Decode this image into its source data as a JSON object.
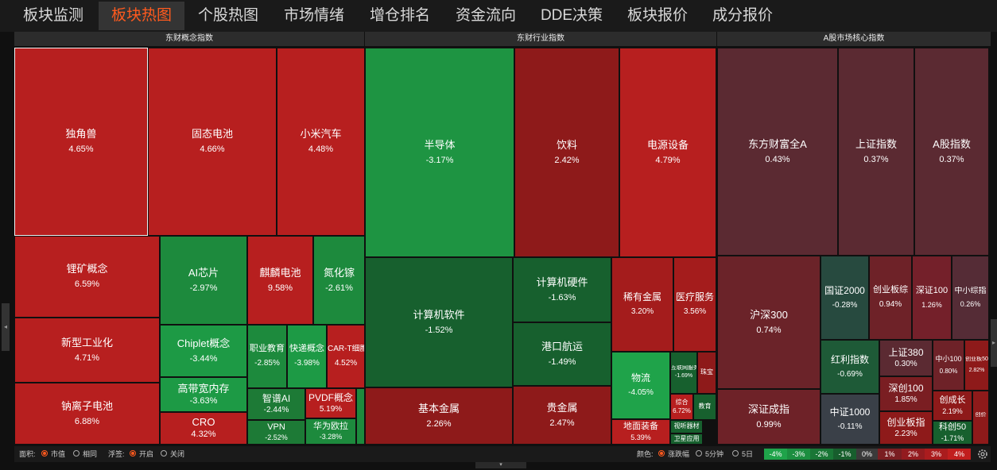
{
  "nav": {
    "tabs": [
      "板块监测",
      "板块热图",
      "个股热图",
      "市场情绪",
      "增仓排名",
      "资金流向",
      "DDE决策",
      "板块报价",
      "成分报价"
    ],
    "active_index": 1
  },
  "sections": [
    "东财概念指数",
    "东财行业指数",
    "A股市场核心指数"
  ],
  "tiles": [
    {
      "name": "独角兽",
      "pct": "4.65%",
      "bg": "#b71f1f"
    },
    {
      "name": "固态电池",
      "pct": "4.66%",
      "bg": "#b71f1f"
    },
    {
      "name": "小米汽车",
      "pct": "4.48%",
      "bg": "#b71f1f"
    },
    {
      "name": "锂矿概念",
      "pct": "6.59%",
      "bg": "#b71f1f"
    },
    {
      "name": "AI芯片",
      "pct": "-2.97%",
      "bg": "#1d8a3d"
    },
    {
      "name": "麒麟电池",
      "pct": "9.58%",
      "bg": "#b71f1f"
    },
    {
      "name": "氮化镓",
      "pct": "-2.61%",
      "bg": "#1d8a3d"
    },
    {
      "name": "新型工业化",
      "pct": "4.71%",
      "bg": "#b71f1f"
    },
    {
      "name": "Chiplet概念",
      "pct": "-3.44%",
      "bg": "#1d9a45"
    },
    {
      "name": "高带宽内存",
      "pct": "-3.63%",
      "bg": "#1d9a45"
    },
    {
      "name": "CRO",
      "pct": "4.32%",
      "bg": "#b71f1f"
    },
    {
      "name": "钠离子电池",
      "pct": "6.88%",
      "bg": "#b71f1f"
    },
    {
      "name": "职业教育",
      "pct": "-2.85%",
      "bg": "#1d8a3d"
    },
    {
      "name": "快递概念",
      "pct": "-3.98%",
      "bg": "#1d9a45"
    },
    {
      "name": "CAR-T细胞",
      "pct": "4.52%",
      "bg": "#b71f1f"
    },
    {
      "name": "智谱AI",
      "pct": "-2.44%",
      "bg": "#1d7a36"
    },
    {
      "name": "PVDF概念",
      "pct": "5.19%",
      "bg": "#b71f1f"
    },
    {
      "name": "VPN",
      "pct": "-2.52%",
      "bg": "#1d7a36"
    },
    {
      "name": "华为欧拉",
      "pct": "-3.28%",
      "bg": "#1d8a3d"
    },
    {
      "name": "",
      "pct": "",
      "bg": "#1d8a3d"
    },
    {
      "name": "半导体",
      "pct": "-3.17%",
      "bg": "#1e9442"
    },
    {
      "name": "饮料",
      "pct": "2.42%",
      "bg": "#8e1a1a"
    },
    {
      "name": "电源设备",
      "pct": "4.79%",
      "bg": "#b71f1f"
    },
    {
      "name": "计算机软件",
      "pct": "-1.52%",
      "bg": "#17602e"
    },
    {
      "name": "计算机硬件",
      "pct": "-1.63%",
      "bg": "#17602e"
    },
    {
      "name": "港口航运",
      "pct": "-1.49%",
      "bg": "#17602e"
    },
    {
      "name": "稀有金属",
      "pct": "3.20%",
      "bg": "#a41c1c"
    },
    {
      "name": "医疗服务",
      "pct": "3.56%",
      "bg": "#a41c1c"
    },
    {
      "name": "物流",
      "pct": "-4.05%",
      "bg": "#1fa34a"
    },
    {
      "name": "互联网服务",
      "pct": "-1.69%",
      "bg": "#17602e"
    },
    {
      "name": "珠宝",
      "pct": "",
      "bg": "#8e1a1a"
    },
    {
      "name": "综合",
      "pct": "6.72%",
      "bg": "#b71f1f"
    },
    {
      "name": "教育",
      "pct": "",
      "bg": "#17602e"
    },
    {
      "name": "基本金属",
      "pct": "2.26%",
      "bg": "#8e1a1a"
    },
    {
      "name": "贵金属",
      "pct": "2.47%",
      "bg": "#8e1a1a"
    },
    {
      "name": "地面装备",
      "pct": "5.39%",
      "bg": "#b71f1f"
    },
    {
      "name": "视听器材",
      "pct": "",
      "bg": "#17602e"
    },
    {
      "name": "卫星应用",
      "pct": "",
      "bg": "#17602e"
    },
    {
      "name": "东方财富全A",
      "pct": "0.43%",
      "bg": "#5b2a32"
    },
    {
      "name": "上证指数",
      "pct": "0.37%",
      "bg": "#5b2a32"
    },
    {
      "name": "A股指数",
      "pct": "0.37%",
      "bg": "#5b2a32"
    },
    {
      "name": "沪深300",
      "pct": "0.74%",
      "bg": "#6b2329"
    },
    {
      "name": "国证2000",
      "pct": "-0.28%",
      "bg": "#274a3f"
    },
    {
      "name": "创业板综",
      "pct": "0.94%",
      "bg": "#6e2228"
    },
    {
      "name": "深证100",
      "pct": "1.26%",
      "bg": "#74202a"
    },
    {
      "name": "中小综指",
      "pct": "0.26%",
      "bg": "#552c36"
    },
    {
      "name": "红利指数",
      "pct": "-0.69%",
      "bg": "#1e5a37"
    },
    {
      "name": "上证380",
      "pct": "0.30%",
      "bg": "#5b2a32"
    },
    {
      "name": "中小100",
      "pct": "0.80%",
      "bg": "#6e2228"
    },
    {
      "name": "创业板50",
      "pct": "2.82%",
      "bg": "#8e1a1a"
    },
    {
      "name": "深创100",
      "pct": "1.85%",
      "bg": "#7a1e22"
    },
    {
      "name": "深证成指",
      "pct": "0.99%",
      "bg": "#6e2228"
    },
    {
      "name": "中证1000",
      "pct": "-0.11%",
      "bg": "#3a4048"
    },
    {
      "name": "创业板指",
      "pct": "2.23%",
      "bg": "#8e1a1a"
    },
    {
      "name": "创成长",
      "pct": "2.19%",
      "bg": "#8e1a1a"
    },
    {
      "name": "科创50",
      "pct": "-1.71%",
      "bg": "#17602e"
    },
    {
      "name": "创价",
      "pct": "",
      "bg": "#8e1a1a"
    }
  ],
  "bottom": {
    "area_label": "面积:",
    "area_options": [
      "市值",
      "相同"
    ],
    "float_label": "浮签:",
    "float_options": [
      "开启",
      "关闭"
    ],
    "color_label": "颜色:",
    "color_options": [
      "涨跌幅",
      "5分钟",
      "5日"
    ],
    "scale": [
      "-4%",
      "-3%",
      "-2%",
      "-1%",
      "0%",
      "1%",
      "2%",
      "3%",
      "4%"
    ],
    "scale_colors": [
      "#1fa34a",
      "#1c8e40",
      "#1a7636",
      "#175e2d",
      "#3a3a3a",
      "#7a1e22",
      "#931b1f",
      "#aa1c1e",
      "#c11e1e"
    ]
  }
}
